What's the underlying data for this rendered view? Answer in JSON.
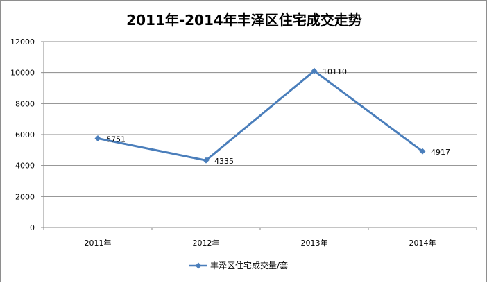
{
  "chart_data": {
    "type": "line",
    "title": "2011年-2014年丰泽区住宅成交走势",
    "categories": [
      "2011年",
      "2012年",
      "2013年",
      "2014年"
    ],
    "series": [
      {
        "name": "丰泽区住宅成交量/套",
        "values": [
          5751,
          4335,
          10110,
          4917
        ],
        "color": "#4a7ebb"
      }
    ],
    "data_labels": [
      "5751",
      "4335",
      "10110",
      "4917"
    ],
    "yticks": [
      0,
      2000,
      4000,
      6000,
      8000,
      10000,
      12000
    ],
    "ylim": [
      0,
      12000
    ],
    "grid": true,
    "legend": "bottom",
    "xlabel": "",
    "ylabel": ""
  }
}
